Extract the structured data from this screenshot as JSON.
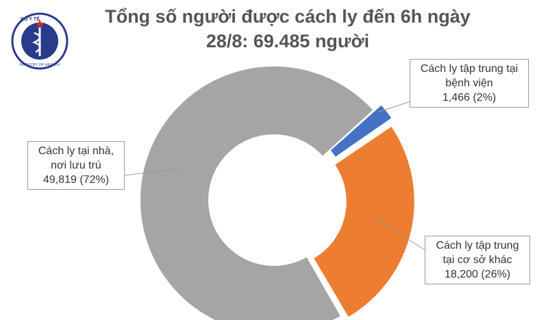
{
  "chart_data": {
    "type": "donut",
    "title": "Tổng số người được cách ly đến 6h ngày 28/8: 69.485 người",
    "logo": {
      "top": "BỘ Y TẾ",
      "bottom": "MINISTRY OF HEALTH"
    },
    "categories": [
      "Cách ly tập trung tại bệnh viện",
      "Cách ly tập trung tại cơ sở khác",
      "Cách ly tại nhà, nơi lưu trú"
    ],
    "values": [
      1466,
      18200,
      49819
    ],
    "value_labels": [
      "1,466 (2%)",
      "18,200 (26%)",
      "49,819 (72%)"
    ],
    "colors": [
      "#4472c4",
      "#ed7d31",
      "#a5a5a5"
    ]
  }
}
